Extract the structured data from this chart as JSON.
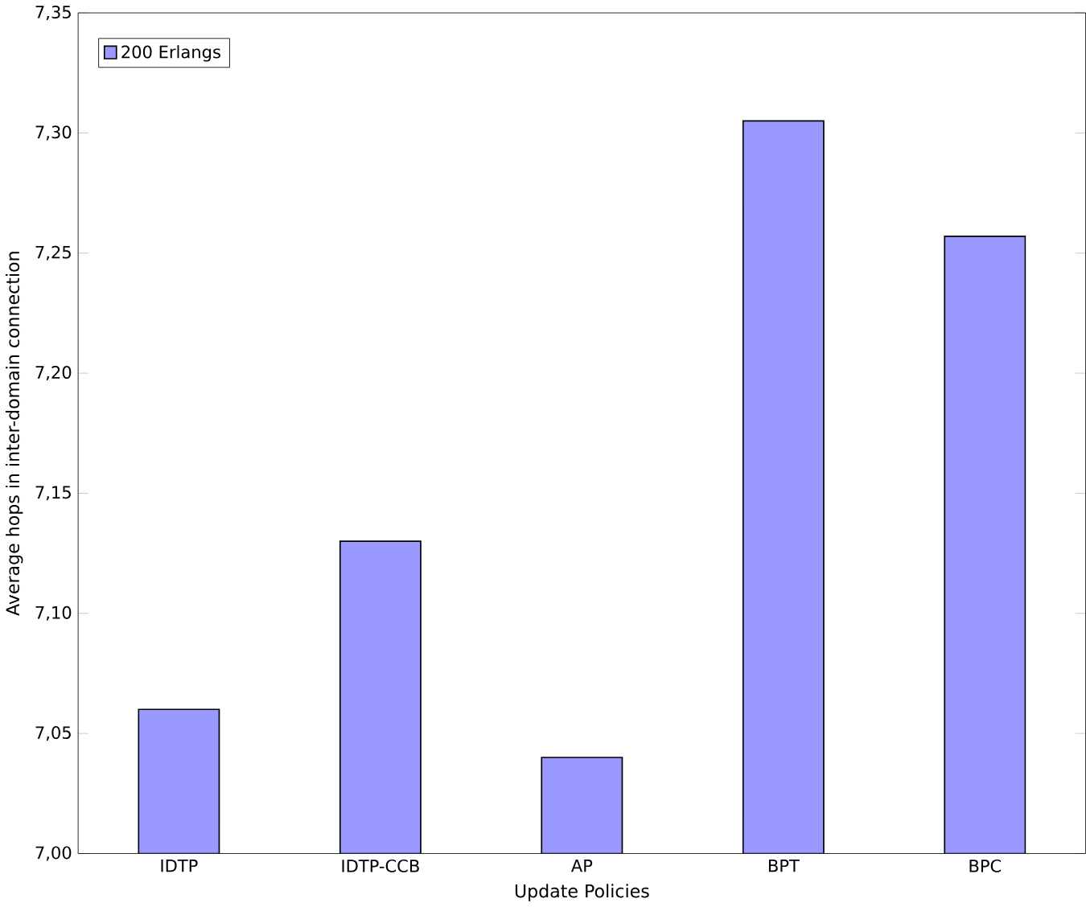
{
  "chart_data": {
    "type": "bar",
    "xlabel": "Update Policies",
    "ylabel": "Average hops in inter-domain connection",
    "categories": [
      "IDTP",
      "IDTP-CCB",
      "AP",
      "BPT",
      "BPC"
    ],
    "series": [
      {
        "name": "200 Erlangs",
        "color": "#9999ff",
        "values": [
          7.06,
          7.13,
          7.04,
          7.305,
          7.257
        ]
      }
    ],
    "ylim": [
      7.0,
      7.35
    ],
    "yticks": [
      {
        "value": 7.0,
        "label": "7,00"
      },
      {
        "value": 7.05,
        "label": "7,05"
      },
      {
        "value": 7.1,
        "label": "7,10"
      },
      {
        "value": 7.15,
        "label": "7,15"
      },
      {
        "value": 7.2,
        "label": "7,20"
      },
      {
        "value": 7.25,
        "label": "7,25"
      },
      {
        "value": 7.3,
        "label": "7,30"
      },
      {
        "value": 7.35,
        "label": "7,35"
      }
    ],
    "legend": "top left",
    "grid": false
  }
}
